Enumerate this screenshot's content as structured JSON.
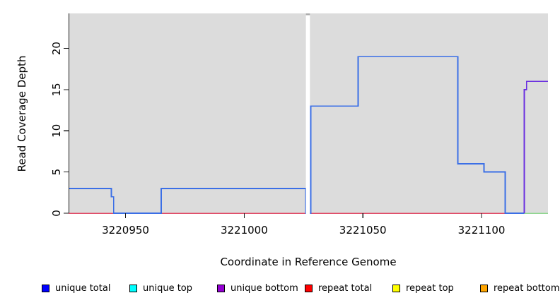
{
  "chart_data": {
    "type": "line",
    "subtype": "step-coverage",
    "title": "",
    "xlabel": "Coordinate in Reference Genome",
    "ylabel": "Read Coverage Depth",
    "xlim": [
      3220926,
      3221128
    ],
    "ylim": [
      0,
      24.25
    ],
    "x_ticks": [
      3220950,
      3221000,
      3221050,
      3221100
    ],
    "y_ticks": [
      0,
      5,
      10,
      15,
      20
    ],
    "grid": false,
    "plot_background": "#DCDCDC",
    "axis_color": "#1a1a1a",
    "masked_region": {
      "x_start": 3221026,
      "x_end": 3221027.7,
      "color": "#FFFFFF",
      "top_cap_color": "#ABABAB"
    },
    "series": [
      {
        "name": "repeat total",
        "color": "#E04A66",
        "stroke_width": 1.5,
        "segments": [
          [
            3220926,
            3221118,
            0
          ]
        ]
      },
      {
        "name": "unlabeled green baseline",
        "color": "#8FD68F",
        "stroke_width": 1.5,
        "segments": [
          [
            3221118,
            3221128,
            0
          ]
        ]
      },
      {
        "name": "unique total",
        "color": "#3B6FE6",
        "stroke_width": 1.8,
        "segments": [
          [
            3220926,
            3220944,
            3
          ],
          [
            3220944,
            3220945,
            2
          ],
          [
            3220945,
            3220965,
            0
          ],
          [
            3220965,
            3221026,
            3
          ],
          [
            3221026,
            3221028,
            0
          ],
          [
            3221028,
            3221048,
            13
          ],
          [
            3221048,
            3221090,
            19
          ],
          [
            3221090,
            3221101,
            6
          ],
          [
            3221101,
            3221110,
            5
          ],
          [
            3221110,
            3221118,
            0
          ]
        ]
      },
      {
        "name": "unique bottom",
        "color": "#6A2FE0",
        "stroke_width": 1.8,
        "segments": [
          [
            3221118,
            3221118,
            0
          ],
          [
            3221118,
            3221119,
            15
          ],
          [
            3221119,
            3221128,
            16
          ]
        ]
      }
    ],
    "legend": {
      "position": "bottom",
      "entries": [
        {
          "label": "unique total",
          "color": "#0000FF"
        },
        {
          "label": "unique top",
          "color": "#00FFFF"
        },
        {
          "label": "unique bottom",
          "color": "#9400D3"
        },
        {
          "label": "repeat total",
          "color": "#FF0000"
        },
        {
          "label": "repeat top",
          "color": "#FFFF00"
        },
        {
          "label": "repeat bottom",
          "color": "#FFA500"
        }
      ]
    }
  }
}
